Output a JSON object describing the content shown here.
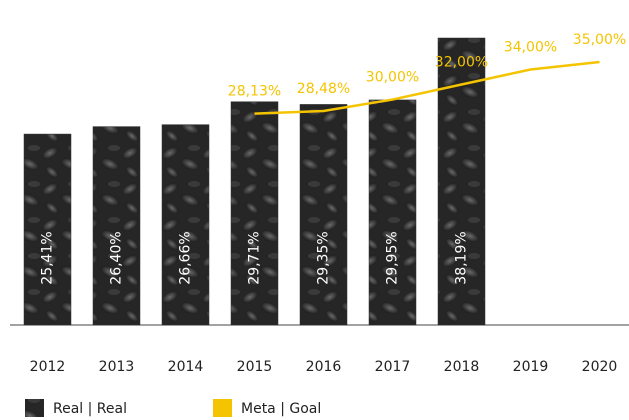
{
  "chart_data": {
    "type": "bar-line",
    "categories": [
      "2012",
      "2013",
      "2014",
      "2015",
      "2016",
      "2017",
      "2018",
      "2019",
      "2020"
    ],
    "series": [
      {
        "name": "Real | Real",
        "type": "bar",
        "color": "#2e2e2e",
        "values": [
          25.41,
          26.4,
          26.66,
          29.71,
          29.35,
          29.95,
          38.19,
          null,
          null
        ],
        "value_labels": [
          "25,41%",
          "26,40%",
          "26,66%",
          "29,71%",
          "29,35%",
          "29,95%",
          "38,19%",
          null,
          null
        ]
      },
      {
        "name": "Meta | Goal",
        "type": "line",
        "color": "#f5c400",
        "values": [
          null,
          null,
          null,
          28.13,
          28.48,
          30.0,
          32.0,
          34.0,
          35.0
        ],
        "value_labels": [
          null,
          null,
          null,
          "28,13%",
          "28,48%",
          "30,00%",
          "32,00%",
          "34,00%",
          "35,00%"
        ]
      }
    ]
  }
}
